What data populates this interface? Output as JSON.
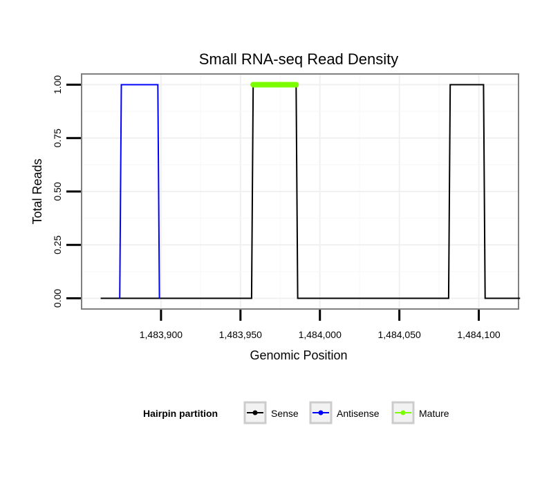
{
  "chart_data": {
    "type": "line",
    "title": "Small RNA-seq Read Density",
    "xlabel": "Genomic Position",
    "ylabel": "Total Reads",
    "xlim": [
      1483850,
      1484125
    ],
    "ylim": [
      -0.05,
      1.05
    ],
    "x_ticks": [
      1483900,
      1483950,
      1484000,
      1484050,
      1484100
    ],
    "x_tick_labels": [
      "1,483,900",
      "1,483,950",
      "1,484,000",
      "1,484,050",
      "1,484,100"
    ],
    "y_ticks": [
      0,
      0.25,
      0.5,
      0.75,
      1
    ],
    "y_tick_labels": [
      "0.00",
      "0.25",
      "0.50",
      "0.75",
      "1.00"
    ],
    "grid": true,
    "legend": {
      "title": "Hairpin partition",
      "position": "bottom",
      "entries": [
        "Sense",
        "Antisense",
        "Mature"
      ]
    },
    "series": [
      {
        "name": "Sense",
        "color": "#000000",
        "x": [
          1483862,
          1483957,
          1483958,
          1483985,
          1483986,
          1484081,
          1484082,
          1484103,
          1484104,
          1484126
        ],
        "y": [
          0,
          0,
          1,
          1,
          0,
          0,
          1,
          1,
          0,
          0
        ]
      },
      {
        "name": "Antisense",
        "color": "#0000ff",
        "x": [
          1483874,
          1483875,
          1483898,
          1483899,
          1483957,
          1483986,
          1484081,
          1484104
        ],
        "y": [
          0,
          1,
          1,
          0,
          null,
          0,
          null,
          0
        ]
      },
      {
        "name": "Mature",
        "color": "#7cfc00",
        "x": [
          1483958,
          1483985
        ],
        "y": [
          1,
          1
        ]
      }
    ]
  }
}
